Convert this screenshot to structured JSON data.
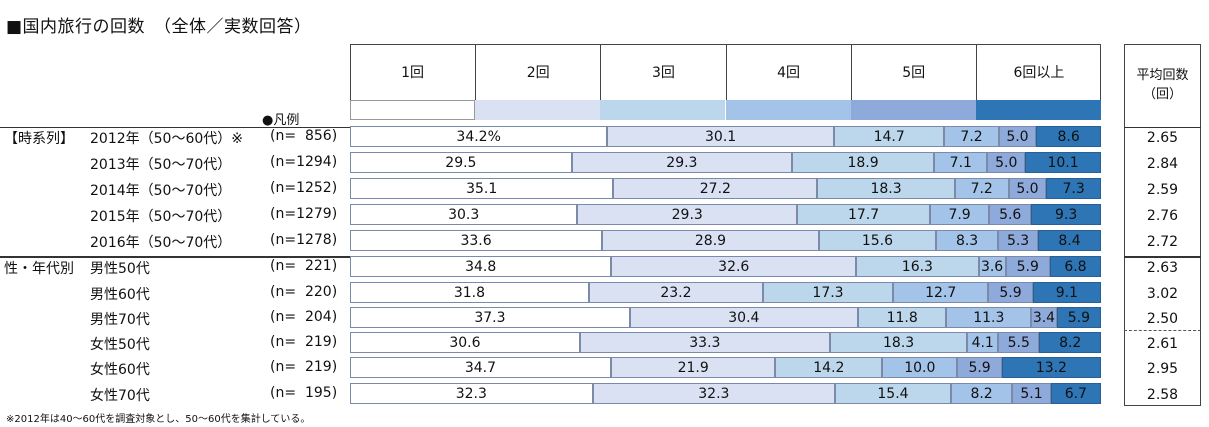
{
  "title": "■国内旅行の回数　（全体／実数回答）",
  "legend_label": "●凡例",
  "avg_header": [
    "平均回数",
    "（回）"
  ],
  "footnote": "※2012年は40～60代を調査対象とし、50～60代を集計している。",
  "colors": [
    "#ffffff",
    "#d9e1f3",
    "#bcd7ec",
    "#a3c4e8",
    "#8eaadb",
    "#2e75b6"
  ],
  "chart_data": {
    "type": "bar",
    "stacked": true,
    "orientation": "horizontal",
    "categories": [
      "1回",
      "2回",
      "3回",
      "4回",
      "5回",
      "6回以上"
    ],
    "groups": [
      {
        "label": "【時系列】",
        "start_row": 0
      },
      {
        "label": "性・年代別",
        "start_row": 5
      }
    ],
    "rows": [
      {
        "label": "2012年（50～60代）※",
        "n": "(n=  856)",
        "values": [
          34.2,
          30.1,
          14.7,
          7.2,
          5.0,
          8.6
        ],
        "labels": [
          "34.2%",
          "30.1",
          "14.7",
          "7.2",
          "5.0",
          "8.6"
        ],
        "avg": "2.65"
      },
      {
        "label": "2013年（50～70代）",
        "n": "(n=1294)",
        "values": [
          29.5,
          29.3,
          18.9,
          7.1,
          5.0,
          10.1
        ],
        "labels": [
          "29.5",
          "29.3",
          "18.9",
          "7.1",
          "5.0",
          "10.1"
        ],
        "avg": "2.84"
      },
      {
        "label": "2014年（50～70代）",
        "n": "(n=1252)",
        "values": [
          35.1,
          27.2,
          18.3,
          7.2,
          5.0,
          7.3
        ],
        "labels": [
          "35.1",
          "27.2",
          "18.3",
          "7.2",
          "5.0",
          "7.3"
        ],
        "avg": "2.59"
      },
      {
        "label": "2015年（50～70代）",
        "n": "(n=1279)",
        "values": [
          30.3,
          29.3,
          17.7,
          7.9,
          5.6,
          9.3
        ],
        "labels": [
          "30.3",
          "29.3",
          "17.7",
          "7.9",
          "5.6",
          "9.3"
        ],
        "avg": "2.76"
      },
      {
        "label": "2016年（50～70代）",
        "n": "(n=1278)",
        "values": [
          33.6,
          28.9,
          15.6,
          8.3,
          5.3,
          8.4
        ],
        "labels": [
          "33.6",
          "28.9",
          "15.6",
          "8.3",
          "5.3",
          "8.4"
        ],
        "avg": "2.72"
      },
      {
        "label": "男性50代",
        "n": "(n=  221)",
        "values": [
          34.8,
          32.6,
          16.3,
          3.6,
          5.9,
          6.8
        ],
        "labels": [
          "34.8",
          "32.6",
          "16.3",
          "3.6",
          "5.9",
          "6.8"
        ],
        "avg": "2.63"
      },
      {
        "label": "男性60代",
        "n": "(n=  220)",
        "values": [
          31.8,
          23.2,
          17.3,
          12.7,
          5.9,
          9.1
        ],
        "labels": [
          "31.8",
          "23.2",
          "17.3",
          "12.7",
          "5.9",
          "9.1"
        ],
        "avg": "3.02"
      },
      {
        "label": "男性70代",
        "n": "(n=  204)",
        "values": [
          37.3,
          30.4,
          11.8,
          11.3,
          3.4,
          5.9
        ],
        "labels": [
          "37.3",
          "30.4",
          "11.8",
          "11.3",
          "3.4",
          "5.9"
        ],
        "avg": "2.50"
      },
      {
        "label": "女性50代",
        "n": "(n=  219)",
        "values": [
          30.6,
          33.3,
          18.3,
          4.1,
          5.5,
          8.2
        ],
        "labels": [
          "30.6",
          "33.3",
          "18.3",
          "4.1",
          "5.5",
          "8.2"
        ],
        "avg": "2.61"
      },
      {
        "label": "女性60代",
        "n": "(n=  219)",
        "values": [
          34.7,
          21.9,
          14.2,
          10.0,
          5.9,
          13.2
        ],
        "labels": [
          "34.7",
          "21.9",
          "14.2",
          "10.0",
          "5.9",
          "13.2"
        ],
        "avg": "2.95"
      },
      {
        "label": "女性70代",
        "n": "(n=  195)",
        "values": [
          32.3,
          32.3,
          15.4,
          8.2,
          5.1,
          6.7
        ],
        "labels": [
          "32.3",
          "32.3",
          "15.4",
          "8.2",
          "5.1",
          "6.7"
        ],
        "avg": "2.58"
      }
    ]
  }
}
